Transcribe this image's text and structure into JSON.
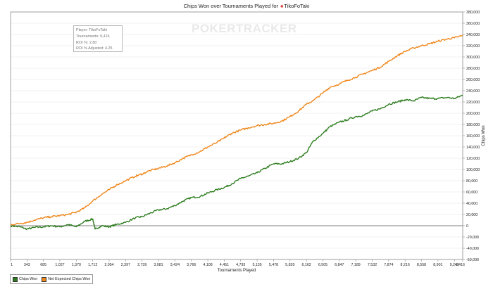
{
  "header": {
    "title_prefix": "Chips Won over Tournaments Played for",
    "player_icon": "pokerstars-logo-icon",
    "player_name": "TikoFoTaki"
  },
  "info_box": {
    "lines": [
      "Player: TikoFoTaki",
      "Tournaments: 9,416",
      "ROI %: 2.80",
      "ROI % Adjusted: 4.25"
    ]
  },
  "watermark": "POKERTRACKER",
  "colors": {
    "chips_won": "#2d7d1e",
    "net_expected": "#f0871a",
    "grid": "#e4e4e4",
    "zero_line": "#555555"
  },
  "legend": {
    "items": [
      {
        "label": "Chips Won",
        "color": "#2d7d1e"
      },
      {
        "label": "Net Expected Chips Won",
        "color": "#f0871a"
      }
    ]
  },
  "chart_data": {
    "type": "line",
    "title": "Chips Won over Tournaments Played for TikoFoTaki",
    "xlabel": "Tournaments Played",
    "ylabel": "Chips Won",
    "xlim": [
      1,
      9416
    ],
    "ylim": [
      -60000,
      380000
    ],
    "x_ticks": [
      1,
      343,
      685,
      1027,
      1370,
      1712,
      2054,
      2397,
      2739,
      3081,
      3424,
      3766,
      4108,
      4451,
      4793,
      5135,
      5478,
      5820,
      6162,
      6505,
      6847,
      7189,
      7532,
      7874,
      8216,
      8558,
      8901,
      9243,
      9416
    ],
    "x_tick_labels": [
      "1",
      "343",
      "685",
      "1,027",
      "1,370",
      "1,712",
      "2,054",
      "2,397",
      "2,739",
      "3,081",
      "3,424",
      "3,766",
      "4,108",
      "4,451",
      "4,793",
      "5,135",
      "5,478",
      "5,820",
      "6,162",
      "6,505",
      "6,847",
      "7,189",
      "7,532",
      "7,874",
      "8,216",
      "8,558",
      "8,901",
      "9,243",
      "9,416"
    ],
    "y_ticks": [
      -60000,
      -40000,
      -20000,
      0,
      20000,
      40000,
      60000,
      80000,
      100000,
      120000,
      140000,
      160000,
      180000,
      200000,
      220000,
      240000,
      260000,
      280000,
      300000,
      320000,
      340000,
      360000,
      380000
    ],
    "y_tick_labels": [
      "-60,000",
      "-40,000",
      "-20,000",
      "0",
      "20,000",
      "40,000",
      "60,000",
      "80,000",
      "100,000",
      "120,000",
      "140,000",
      "160,000",
      "180,000",
      "200,000",
      "220,000",
      "240,000",
      "260,000",
      "280,000",
      "300,000",
      "320,000",
      "340,000",
      "360,000",
      "380,000"
    ],
    "y_axis_side": "right",
    "grid": true,
    "legend_position": "bottom-left",
    "series": [
      {
        "name": "Chips Won",
        "color": "#2d7d1e",
        "points": [
          [
            1,
            0
          ],
          [
            200,
            -2000
          ],
          [
            343,
            -6000
          ],
          [
            500,
            -3000
          ],
          [
            685,
            -2000
          ],
          [
            850,
            0
          ],
          [
            1027,
            -2000
          ],
          [
            1200,
            2000
          ],
          [
            1370,
            -2000
          ],
          [
            1550,
            8000
          ],
          [
            1712,
            12000
          ],
          [
            1760,
            -6000
          ],
          [
            1900,
            0
          ],
          [
            2054,
            -2000
          ],
          [
            2200,
            2000
          ],
          [
            2397,
            6000
          ],
          [
            2600,
            14000
          ],
          [
            2739,
            16000
          ],
          [
            2900,
            22000
          ],
          [
            3081,
            28000
          ],
          [
            3250,
            30000
          ],
          [
            3424,
            36000
          ],
          [
            3600,
            44000
          ],
          [
            3766,
            50000
          ],
          [
            3950,
            52000
          ],
          [
            4108,
            58000
          ],
          [
            4300,
            64000
          ],
          [
            4451,
            68000
          ],
          [
            4600,
            74000
          ],
          [
            4793,
            84000
          ],
          [
            4950,
            88000
          ],
          [
            5135,
            94000
          ],
          [
            5300,
            102000
          ],
          [
            5478,
            110000
          ],
          [
            5650,
            110000
          ],
          [
            5820,
            114000
          ],
          [
            6000,
            120000
          ],
          [
            6162,
            130000
          ],
          [
            6300,
            150000
          ],
          [
            6505,
            164000
          ],
          [
            6650,
            176000
          ],
          [
            6847,
            184000
          ],
          [
            7000,
            188000
          ],
          [
            7189,
            194000
          ],
          [
            7350,
            196000
          ],
          [
            7532,
            204000
          ],
          [
            7700,
            208000
          ],
          [
            7874,
            216000
          ],
          [
            8050,
            220000
          ],
          [
            8216,
            224000
          ],
          [
            8400,
            222000
          ],
          [
            8558,
            228000
          ],
          [
            8750,
            226000
          ],
          [
            8901,
            226000
          ],
          [
            9100,
            228000
          ],
          [
            9243,
            226000
          ],
          [
            9416,
            232000
          ]
        ]
      },
      {
        "name": "Net Expected Chips Won",
        "color": "#f0871a",
        "points": [
          [
            1,
            2000
          ],
          [
            200,
            4000
          ],
          [
            343,
            6000
          ],
          [
            500,
            10000
          ],
          [
            685,
            14000
          ],
          [
            850,
            16000
          ],
          [
            1027,
            18000
          ],
          [
            1200,
            20000
          ],
          [
            1370,
            24000
          ],
          [
            1550,
            32000
          ],
          [
            1712,
            44000
          ],
          [
            1900,
            56000
          ],
          [
            2054,
            64000
          ],
          [
            2200,
            72000
          ],
          [
            2397,
            80000
          ],
          [
            2600,
            88000
          ],
          [
            2739,
            92000
          ],
          [
            2900,
            98000
          ],
          [
            3081,
            102000
          ],
          [
            3250,
            106000
          ],
          [
            3424,
            112000
          ],
          [
            3600,
            120000
          ],
          [
            3766,
            126000
          ],
          [
            3950,
            132000
          ],
          [
            4108,
            140000
          ],
          [
            4300,
            148000
          ],
          [
            4451,
            156000
          ],
          [
            4600,
            164000
          ],
          [
            4793,
            170000
          ],
          [
            4950,
            174000
          ],
          [
            5135,
            178000
          ],
          [
            5300,
            180000
          ],
          [
            5478,
            182000
          ],
          [
            5650,
            186000
          ],
          [
            5820,
            194000
          ],
          [
            6000,
            204000
          ],
          [
            6162,
            216000
          ],
          [
            6300,
            222000
          ],
          [
            6505,
            236000
          ],
          [
            6650,
            246000
          ],
          [
            6847,
            252000
          ],
          [
            7000,
            258000
          ],
          [
            7189,
            264000
          ],
          [
            7350,
            270000
          ],
          [
            7532,
            276000
          ],
          [
            7700,
            282000
          ],
          [
            7874,
            292000
          ],
          [
            8050,
            302000
          ],
          [
            8216,
            310000
          ],
          [
            8400,
            316000
          ],
          [
            8558,
            320000
          ],
          [
            8750,
            324000
          ],
          [
            8901,
            328000
          ],
          [
            9100,
            332000
          ],
          [
            9243,
            334000
          ],
          [
            9416,
            338000
          ]
        ]
      }
    ]
  }
}
